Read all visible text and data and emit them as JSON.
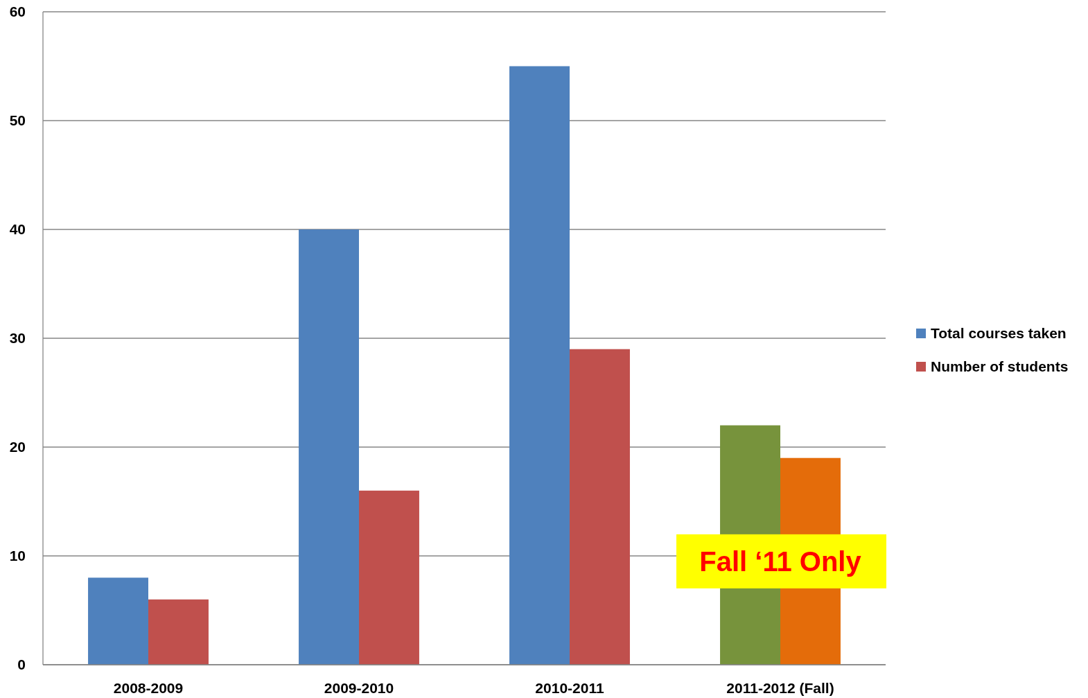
{
  "chart_data": {
    "type": "bar",
    "categories": [
      "2008-2009",
      "2009-2010",
      "2010-2011",
      "2011-2012 (Fall)"
    ],
    "series": [
      {
        "name": "Total courses taken",
        "color": "#4f81bd",
        "colors": [
          "#4f81bd",
          "#4f81bd",
          "#4f81bd",
          "#77933c"
        ],
        "values": [
          8,
          40,
          55,
          22
        ]
      },
      {
        "name": "Number of students",
        "color": "#c0504d",
        "colors": [
          "#c0504d",
          "#c0504d",
          "#c0504d",
          "#e46c0a"
        ],
        "values": [
          6,
          16,
          29,
          19
        ]
      }
    ],
    "ylim": [
      0,
      60
    ],
    "yticks": [
      0,
      10,
      20,
      30,
      40,
      50,
      60
    ],
    "grid": "y",
    "legend": "right",
    "annotations": [
      {
        "text": "Fall ‘11 Only",
        "x": "2011-2012 (Fall)",
        "y": 9.5
      }
    ]
  }
}
